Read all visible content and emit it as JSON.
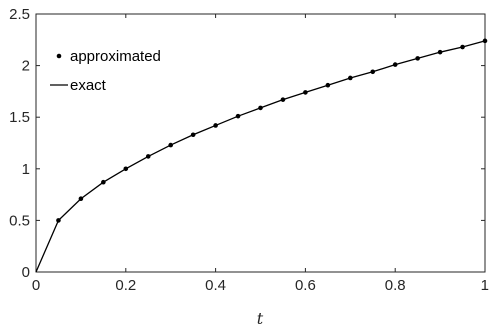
{
  "chart_data": {
    "type": "line",
    "xlabel": "t",
    "ylabel": "",
    "xlim": [
      0,
      1
    ],
    "ylim": [
      0,
      2.5
    ],
    "xticks": [
      0,
      0.2,
      0.4,
      0.6,
      0.8,
      1
    ],
    "xtick_labels": [
      "0",
      "0.2",
      "0.4",
      "0.6",
      "0.8",
      "1"
    ],
    "yticks": [
      0,
      0.5,
      1,
      1.5,
      2,
      2.5
    ],
    "ytick_labels": [
      "0",
      "0.5",
      "1",
      "1.5",
      "2",
      "2.5"
    ],
    "grid": false,
    "legend_position": "top-left",
    "colors": {
      "line": "#000000",
      "marker": "#000000",
      "axis": "#262626"
    },
    "series": [
      {
        "name": "approximated",
        "style": "markers",
        "x": [
          0.05,
          0.1,
          0.15,
          0.2,
          0.25,
          0.3,
          0.35,
          0.4,
          0.45,
          0.5,
          0.55,
          0.6,
          0.65,
          0.7,
          0.75,
          0.8,
          0.85,
          0.9,
          0.95,
          1.0
        ],
        "y": [
          0.5,
          0.71,
          0.87,
          1.0,
          1.12,
          1.23,
          1.33,
          1.42,
          1.51,
          1.59,
          1.67,
          1.74,
          1.81,
          1.88,
          1.94,
          2.01,
          2.07,
          2.13,
          2.18,
          2.24
        ]
      },
      {
        "name": "exact",
        "style": "line",
        "x": [
          0,
          0.05,
          0.1,
          0.15,
          0.2,
          0.25,
          0.3,
          0.35,
          0.4,
          0.45,
          0.5,
          0.55,
          0.6,
          0.65,
          0.7,
          0.75,
          0.8,
          0.85,
          0.9,
          0.95,
          1.0
        ],
        "y": [
          0,
          0.5,
          0.71,
          0.87,
          1.0,
          1.12,
          1.23,
          1.33,
          1.42,
          1.51,
          1.59,
          1.67,
          1.74,
          1.81,
          1.88,
          1.94,
          2.01,
          2.07,
          2.13,
          2.18,
          2.24
        ]
      }
    ]
  }
}
